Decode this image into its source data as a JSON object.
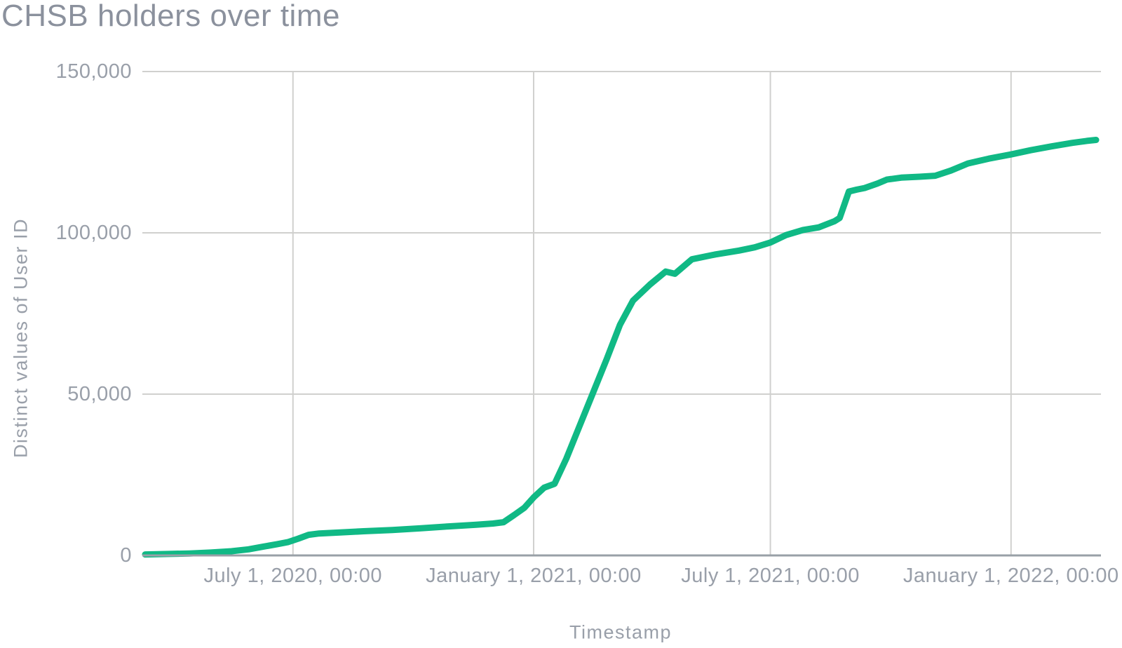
{
  "chart_data": {
    "type": "line",
    "title": "CHSB holders over time",
    "xlabel": "Timestamp",
    "ylabel": "Distinct values of User ID",
    "ylim": [
      0,
      150000
    ],
    "x_domain": [
      "2020-03-10",
      "2022-03-07"
    ],
    "grid": true,
    "legend": "none",
    "colors": {
      "line": "#10b985",
      "gridline": "#d0d0ce",
      "axis_line": "#99a0a7",
      "tick_text": "#999fa9",
      "title_text": "#8b919d"
    },
    "y_ticks": [
      {
        "value": 0,
        "label": "0"
      },
      {
        "value": 50000,
        "label": "50,000"
      },
      {
        "value": 100000,
        "label": "100,000"
      },
      {
        "value": 150000,
        "label": "150,000"
      }
    ],
    "x_ticks": [
      {
        "date": "2020-07-01",
        "label": "July 1, 2020, 00:00"
      },
      {
        "date": "2021-01-01",
        "label": "January 1, 2021, 00:00"
      },
      {
        "date": "2021-07-01",
        "label": "July 1, 2021, 00:00"
      },
      {
        "date": "2022-01-01",
        "label": "January 1, 2022, 00:00"
      }
    ],
    "series": [
      {
        "name": "Distinct values of User ID",
        "points": [
          [
            "2020-03-10",
            300
          ],
          [
            "2020-03-28",
            450
          ],
          [
            "2020-04-13",
            600
          ],
          [
            "2020-04-29",
            900
          ],
          [
            "2020-05-15",
            1300
          ],
          [
            "2020-05-28",
            1900
          ],
          [
            "2020-06-08",
            2700
          ],
          [
            "2020-06-19",
            3500
          ],
          [
            "2020-06-27",
            4100
          ],
          [
            "2020-07-05",
            5200
          ],
          [
            "2020-07-13",
            6400
          ],
          [
            "2020-07-21",
            6800
          ],
          [
            "2020-08-06",
            7100
          ],
          [
            "2020-08-24",
            7500
          ],
          [
            "2020-09-15",
            7900
          ],
          [
            "2020-10-06",
            8400
          ],
          [
            "2020-10-28",
            9000
          ],
          [
            "2020-11-18",
            9500
          ],
          [
            "2020-12-01",
            9900
          ],
          [
            "2020-12-09",
            10300
          ],
          [
            "2020-12-17",
            12500
          ],
          [
            "2020-12-25",
            14800
          ],
          [
            "2021-01-01",
            18000
          ],
          [
            "2021-01-09",
            21000
          ],
          [
            "2021-01-17",
            22200
          ],
          [
            "2021-01-26",
            30000
          ],
          [
            "2021-02-03",
            38000
          ],
          [
            "2021-02-15",
            50000
          ],
          [
            "2021-02-26",
            61000
          ],
          [
            "2021-03-08",
            71500
          ],
          [
            "2021-03-18",
            79000
          ],
          [
            "2021-03-31",
            84000
          ],
          [
            "2021-04-12",
            88000
          ],
          [
            "2021-04-19",
            87300
          ],
          [
            "2021-05-02",
            91800
          ],
          [
            "2021-05-20",
            93300
          ],
          [
            "2021-06-07",
            94500
          ],
          [
            "2021-06-19",
            95500
          ],
          [
            "2021-07-01",
            97000
          ],
          [
            "2021-07-13",
            99300
          ],
          [
            "2021-07-26",
            100900
          ],
          [
            "2021-08-07",
            101700
          ],
          [
            "2021-08-19",
            103600
          ],
          [
            "2021-08-23",
            104600
          ],
          [
            "2021-08-30",
            112800
          ],
          [
            "2021-09-05",
            113400
          ],
          [
            "2021-09-11",
            113900
          ],
          [
            "2021-09-21",
            115300
          ],
          [
            "2021-09-28",
            116500
          ],
          [
            "2021-10-09",
            117100
          ],
          [
            "2021-10-23",
            117400
          ],
          [
            "2021-11-04",
            117700
          ],
          [
            "2021-11-16",
            119300
          ],
          [
            "2021-11-29",
            121500
          ],
          [
            "2021-12-15",
            123000
          ],
          [
            "2022-01-01",
            124300
          ],
          [
            "2022-01-16",
            125600
          ],
          [
            "2022-02-01",
            126800
          ],
          [
            "2022-02-17",
            127900
          ],
          [
            "2022-02-28",
            128500
          ],
          [
            "2022-03-07",
            128800
          ]
        ]
      }
    ]
  }
}
